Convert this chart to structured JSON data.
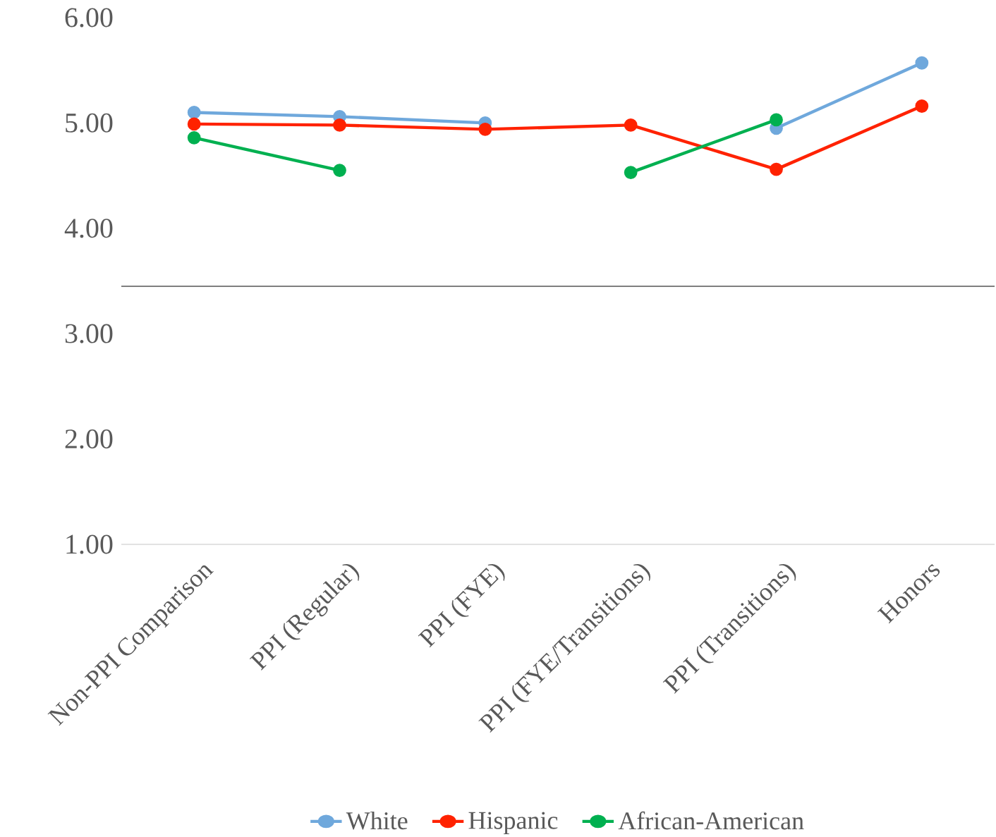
{
  "chart_data": {
    "type": "line",
    "categories": [
      "Non-PPI Comparison",
      "PPI (Regular)",
      "PPI (FYE)",
      "PPI (FYE/Transitions)",
      "PPI (Transitions)",
      "Honors"
    ],
    "series": [
      {
        "name": "White",
        "color": "#6fa8dc",
        "values": [
          5.1,
          5.06,
          5.0,
          null,
          4.95,
          5.57
        ]
      },
      {
        "name": "Hispanic",
        "color": "#ff2200",
        "values": [
          4.99,
          4.98,
          4.94,
          4.98,
          4.56,
          5.16
        ]
      },
      {
        "name": "African-American",
        "color": "#00b050",
        "values": [
          4.86,
          4.55,
          null,
          4.53,
          5.03,
          null
        ]
      }
    ],
    "ylim": [
      1,
      6
    ],
    "yticks": [
      {
        "value": 1,
        "label": "1.00"
      },
      {
        "value": 2,
        "label": "2.00"
      },
      {
        "value": 3,
        "label": "3.00"
      },
      {
        "value": 4,
        "label": "4.00"
      },
      {
        "value": 5,
        "label": "5.00"
      },
      {
        "value": 6,
        "label": "6.00"
      }
    ],
    "ref_lines": [
      {
        "axis": "y",
        "value": 3.45,
        "color": "#7f7f7f"
      }
    ],
    "grid": false,
    "legend": "bottom",
    "marker": "circle",
    "line_style": "solid"
  }
}
